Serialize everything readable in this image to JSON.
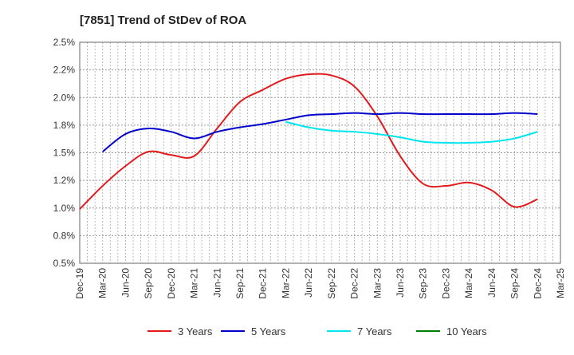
{
  "chart_data": {
    "type": "line",
    "title": "[7851]  Trend of StDev of ROA",
    "xlabel": "",
    "ylabel": "",
    "ylim": [
      0.5,
      2.5
    ],
    "y_ticks": [
      "0.5%",
      "0.8%",
      "1.0%",
      "1.2%",
      "1.5%",
      "1.8%",
      "2.0%",
      "2.2%",
      "2.5%"
    ],
    "y_tick_values": [
      0.5,
      0.75,
      1.0,
      1.25,
      1.5,
      1.75,
      2.0,
      2.25,
      2.5
    ],
    "categories": [
      "Dec-19",
      "Mar-20",
      "Jun-20",
      "Sep-20",
      "Dec-20",
      "Mar-21",
      "Jun-21",
      "Sep-21",
      "Dec-21",
      "Mar-22",
      "Jun-22",
      "Sep-22",
      "Dec-22",
      "Mar-23",
      "Jun-23",
      "Sep-23",
      "Dec-23",
      "Mar-24",
      "Jun-24",
      "Sep-24",
      "Dec-24",
      "Mar-25"
    ],
    "grid": true,
    "legend_position": "bottom",
    "series": [
      {
        "name": "3 Years",
        "color": "#e31a1c",
        "values": [
          0.99,
          1.2,
          1.38,
          1.51,
          1.48,
          1.47,
          1.72,
          1.96,
          2.07,
          2.17,
          2.21,
          2.2,
          2.1,
          1.83,
          1.47,
          1.22,
          1.2,
          1.23,
          1.16,
          1.01,
          1.08,
          null
        ]
      },
      {
        "name": "5 Years",
        "color": "#0000cc",
        "values": [
          null,
          1.51,
          1.67,
          1.72,
          1.69,
          1.63,
          1.69,
          1.73,
          1.76,
          1.8,
          1.84,
          1.85,
          1.86,
          1.85,
          1.86,
          1.85,
          1.85,
          1.85,
          1.85,
          1.86,
          1.85,
          null
        ]
      },
      {
        "name": "7 Years",
        "color": "#00e5ee",
        "values": [
          null,
          null,
          null,
          null,
          null,
          null,
          null,
          null,
          null,
          1.78,
          1.73,
          1.7,
          1.69,
          1.67,
          1.64,
          1.6,
          1.59,
          1.59,
          1.6,
          1.63,
          1.69,
          null
        ]
      },
      {
        "name": "10 Years",
        "color": "#008000",
        "values": [
          null,
          null,
          null,
          null,
          null,
          null,
          null,
          null,
          null,
          null,
          null,
          null,
          null,
          null,
          null,
          null,
          null,
          null,
          null,
          null,
          null,
          null
        ]
      }
    ]
  }
}
